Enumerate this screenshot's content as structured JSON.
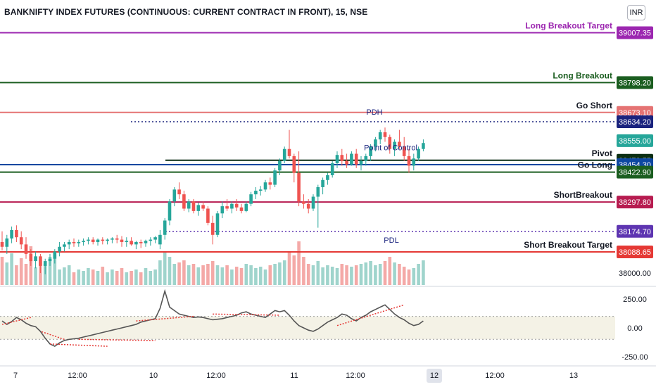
{
  "header": {
    "title": "BANKNIFTY INDEX FUTURES (CONTINUOUS: CURRENT CONTRACT IN FRONT), 15, NSE",
    "currency": "INR"
  },
  "colors": {
    "up": "#26a69a",
    "down": "#ef5350",
    "vol_up": "#9fd4cc",
    "vol_down": "#f4a9a7",
    "purple": "#9c27b0",
    "dark_green": "#1b5e20",
    "salmon": "#e57373",
    "navy": "#1a237e",
    "teal": "#26a69a",
    "blue": "#0d47a1",
    "crimson": "#b71c50",
    "indigo": "#5e35b1",
    "red": "#e53935",
    "cci": "#555555",
    "trend": "#e53935"
  },
  "chart_data": [
    {
      "type": "candlestick",
      "ylim": [
        37950,
        39050
      ],
      "x_labels": [
        "7",
        "12:00",
        "10",
        "12:00",
        "11",
        "12:00",
        "12",
        "12:00",
        "13"
      ],
      "price_axis_labels": [
        "38000.00"
      ],
      "levels": [
        {
          "label": "Long Breakout Target",
          "value": 39007.35,
          "price": "39007.35",
          "color": "#9c27b0",
          "style": "solid"
        },
        {
          "label": "Long Breakout",
          "value": 38798.2,
          "price": "38798.20",
          "color": "#1b5e20",
          "style": "solid"
        },
        {
          "label": "Go Short",
          "value": 38673.1,
          "price": "38673.10",
          "color": "#e57373",
          "style": "solid"
        },
        {
          "label": "PDH",
          "value": 38634.2,
          "price": "38634.20",
          "color": "#1a237e",
          "style": "dotted"
        },
        {
          "label": "",
          "value": 38555.0,
          "price": "38555.00",
          "color": "#26a69a",
          "style": "none"
        },
        {
          "label": "Pivot",
          "value": 38472.55,
          "price": "38472.55",
          "color": "#0b2e13",
          "style": "solid"
        },
        {
          "label": "",
          "value": 38454.3,
          "price": "38454.30",
          "color": "#0d47a1",
          "style": "solid"
        },
        {
          "label": "Go Long",
          "value": 38422.9,
          "price": "38422.90",
          "color": "#1b5e20",
          "style": "solid"
        },
        {
          "label": "ShortBreakout",
          "value": 38297.8,
          "price": "38297.80",
          "color": "#b71c50",
          "style": "solid"
        },
        {
          "label": "PDL",
          "value": 38174.7,
          "price": "38174.70",
          "color": "#5e35b1",
          "style": "dotted"
        },
        {
          "label": "Short Breakout Target",
          "value": 38088.65,
          "price": "38088.65",
          "color": "#e53935",
          "style": "solid"
        }
      ],
      "annotations": [
        "Point of Control"
      ],
      "candles": [
        {
          "o": 38130,
          "h": 38175,
          "l": 38095,
          "c": 38110
        },
        {
          "o": 38110,
          "h": 38160,
          "l": 38080,
          "c": 38145
        },
        {
          "o": 38145,
          "h": 38195,
          "l": 38125,
          "c": 38180
        },
        {
          "o": 38180,
          "h": 38200,
          "l": 38130,
          "c": 38150
        },
        {
          "o": 38150,
          "h": 38175,
          "l": 38100,
          "c": 38120
        },
        {
          "o": 38120,
          "h": 38150,
          "l": 38060,
          "c": 38080
        },
        {
          "o": 38080,
          "h": 38100,
          "l": 38030,
          "c": 38050
        },
        {
          "o": 38050,
          "h": 38090,
          "l": 38020,
          "c": 38070
        },
        {
          "o": 38070,
          "h": 38080,
          "l": 38000,
          "c": 38030
        },
        {
          "o": 38030,
          "h": 38060,
          "l": 37995,
          "c": 38050
        },
        {
          "o": 38050,
          "h": 38080,
          "l": 38030,
          "c": 38060
        },
        {
          "o": 38060,
          "h": 38100,
          "l": 38040,
          "c": 38090
        },
        {
          "o": 38090,
          "h": 38130,
          "l": 38070,
          "c": 38110
        },
        {
          "o": 38110,
          "h": 38130,
          "l": 38090,
          "c": 38120
        },
        {
          "o": 38120,
          "h": 38140,
          "l": 38100,
          "c": 38130
        },
        {
          "o": 38130,
          "h": 38145,
          "l": 38110,
          "c": 38125
        },
        {
          "o": 38125,
          "h": 38140,
          "l": 38110,
          "c": 38130
        },
        {
          "o": 38130,
          "h": 38145,
          "l": 38115,
          "c": 38135
        },
        {
          "o": 38135,
          "h": 38150,
          "l": 38120,
          "c": 38140
        },
        {
          "o": 38140,
          "h": 38150,
          "l": 38120,
          "c": 38130
        },
        {
          "o": 38130,
          "h": 38145,
          "l": 38115,
          "c": 38140
        },
        {
          "o": 38140,
          "h": 38150,
          "l": 38120,
          "c": 38135
        },
        {
          "o": 38135,
          "h": 38145,
          "l": 38120,
          "c": 38140
        },
        {
          "o": 38140,
          "h": 38150,
          "l": 38125,
          "c": 38145
        },
        {
          "o": 38145,
          "h": 38160,
          "l": 38125,
          "c": 38140
        },
        {
          "o": 38140,
          "h": 38155,
          "l": 38110,
          "c": 38130
        },
        {
          "o": 38130,
          "h": 38150,
          "l": 38110,
          "c": 38135
        },
        {
          "o": 38135,
          "h": 38150,
          "l": 38115,
          "c": 38120
        },
        {
          "o": 38120,
          "h": 38135,
          "l": 38100,
          "c": 38130
        },
        {
          "o": 38130,
          "h": 38140,
          "l": 38105,
          "c": 38125
        },
        {
          "o": 38125,
          "h": 38140,
          "l": 38110,
          "c": 38135
        },
        {
          "o": 38135,
          "h": 38150,
          "l": 38115,
          "c": 38140
        },
        {
          "o": 38140,
          "h": 38155,
          "l": 38125,
          "c": 38150
        },
        {
          "o": 38120,
          "h": 38180,
          "l": 38100,
          "c": 38160
        },
        {
          "o": 38160,
          "h": 38230,
          "l": 38140,
          "c": 38220
        },
        {
          "o": 38220,
          "h": 38310,
          "l": 38200,
          "c": 38300
        },
        {
          "o": 38300,
          "h": 38360,
          "l": 38280,
          "c": 38350
        },
        {
          "o": 38350,
          "h": 38380,
          "l": 38310,
          "c": 38330
        },
        {
          "o": 38330,
          "h": 38345,
          "l": 38260,
          "c": 38270
        },
        {
          "o": 38270,
          "h": 38310,
          "l": 38255,
          "c": 38300
        },
        {
          "o": 38300,
          "h": 38310,
          "l": 38250,
          "c": 38260
        },
        {
          "o": 38260,
          "h": 38295,
          "l": 38240,
          "c": 38285
        },
        {
          "o": 38285,
          "h": 38300,
          "l": 38260,
          "c": 38270
        },
        {
          "o": 38270,
          "h": 38280,
          "l": 38200,
          "c": 38210
        },
        {
          "o": 38210,
          "h": 38240,
          "l": 38120,
          "c": 38160
        },
        {
          "o": 38160,
          "h": 38260,
          "l": 38150,
          "c": 38250
        },
        {
          "o": 38250,
          "h": 38300,
          "l": 38230,
          "c": 38280
        },
        {
          "o": 38280,
          "h": 38310,
          "l": 38260,
          "c": 38270
        },
        {
          "o": 38270,
          "h": 38300,
          "l": 38250,
          "c": 38290
        },
        {
          "o": 38290,
          "h": 38310,
          "l": 38260,
          "c": 38275
        },
        {
          "o": 38275,
          "h": 38290,
          "l": 38250,
          "c": 38260
        },
        {
          "o": 38260,
          "h": 38300,
          "l": 38255,
          "c": 38290
        },
        {
          "o": 38290,
          "h": 38340,
          "l": 38280,
          "c": 38330
        },
        {
          "o": 38330,
          "h": 38360,
          "l": 38310,
          "c": 38345
        },
        {
          "o": 38345,
          "h": 38365,
          "l": 38325,
          "c": 38350
        },
        {
          "o": 38350,
          "h": 38390,
          "l": 38340,
          "c": 38380
        },
        {
          "o": 38380,
          "h": 38400,
          "l": 38350,
          "c": 38370
        },
        {
          "o": 38370,
          "h": 38440,
          "l": 38360,
          "c": 38430
        },
        {
          "o": 38430,
          "h": 38480,
          "l": 38410,
          "c": 38470
        },
        {
          "o": 38470,
          "h": 38530,
          "l": 38460,
          "c": 38520
        },
        {
          "o": 38520,
          "h": 38600,
          "l": 38480,
          "c": 38490
        },
        {
          "o": 38490,
          "h": 38500,
          "l": 38380,
          "c": 38420
        },
        {
          "o": 38420,
          "h": 38510,
          "l": 38280,
          "c": 38300
        },
        {
          "o": 38300,
          "h": 38330,
          "l": 38270,
          "c": 38290
        },
        {
          "o": 38290,
          "h": 38310,
          "l": 38250,
          "c": 38270
        },
        {
          "o": 38270,
          "h": 38330,
          "l": 38260,
          "c": 38320
        },
        {
          "o": 38320,
          "h": 38370,
          "l": 38190,
          "c": 38360
        },
        {
          "o": 38360,
          "h": 38400,
          "l": 38330,
          "c": 38390
        },
        {
          "o": 38390,
          "h": 38420,
          "l": 38370,
          "c": 38410
        },
        {
          "o": 38410,
          "h": 38470,
          "l": 38400,
          "c": 38460
        },
        {
          "o": 38460,
          "h": 38510,
          "l": 38440,
          "c": 38495
        },
        {
          "o": 38495,
          "h": 38520,
          "l": 38450,
          "c": 38470
        },
        {
          "o": 38470,
          "h": 38500,
          "l": 38440,
          "c": 38455
        },
        {
          "o": 38455,
          "h": 38510,
          "l": 38450,
          "c": 38500
        },
        {
          "o": 38500,
          "h": 38520,
          "l": 38440,
          "c": 38455
        },
        {
          "o": 38455,
          "h": 38490,
          "l": 38430,
          "c": 38470
        },
        {
          "o": 38470,
          "h": 38500,
          "l": 38450,
          "c": 38490
        },
        {
          "o": 38490,
          "h": 38540,
          "l": 38470,
          "c": 38530
        },
        {
          "o": 38530,
          "h": 38570,
          "l": 38510,
          "c": 38560
        },
        {
          "o": 38560,
          "h": 38600,
          "l": 38540,
          "c": 38590
        },
        {
          "o": 38590,
          "h": 38610,
          "l": 38550,
          "c": 38570
        },
        {
          "o": 38570,
          "h": 38580,
          "l": 38500,
          "c": 38520
        },
        {
          "o": 38520,
          "h": 38560,
          "l": 38490,
          "c": 38550
        },
        {
          "o": 38550,
          "h": 38600,
          "l": 38520,
          "c": 38530
        },
        {
          "o": 38530,
          "h": 38570,
          "l": 38470,
          "c": 38490
        },
        {
          "o": 38490,
          "h": 38520,
          "l": 38420,
          "c": 38450
        },
        {
          "o": 38450,
          "h": 38500,
          "l": 38430,
          "c": 38480
        },
        {
          "o": 38480,
          "h": 38530,
          "l": 38470,
          "c": 38520
        },
        {
          "o": 38520,
          "h": 38560,
          "l": 38510,
          "c": 38545
        }
      ],
      "volumes": [
        40,
        32,
        45,
        28,
        38,
        30,
        55,
        25,
        35,
        30,
        40,
        42,
        22,
        25,
        28,
        18,
        22,
        20,
        24,
        22,
        20,
        26,
        18,
        22,
        20,
        24,
        18,
        20,
        22,
        18,
        24,
        20,
        22,
        35,
        48,
        40,
        30,
        32,
        35,
        28,
        30,
        25,
        28,
        30,
        34,
        28,
        25,
        28,
        22,
        26,
        24,
        30,
        28,
        24,
        26,
        22,
        28,
        30,
        32,
        35,
        48,
        42,
        62,
        40,
        30,
        28,
        34,
        25,
        28,
        26,
        24,
        30,
        28,
        26,
        28,
        30,
        32,
        34,
        28,
        30,
        34,
        40,
        32,
        30,
        26,
        22,
        24,
        30,
        35
      ]
    },
    {
      "type": "line",
      "name": "",
      "ylim": [
        -300,
        330
      ],
      "y_labels": [
        "250.00",
        "0.00",
        "-250.00"
      ],
      "bands": [
        100,
        -100
      ],
      "values": [
        60,
        30,
        55,
        90,
        70,
        40,
        20,
        10,
        -30,
        -90,
        -140,
        -160,
        -130,
        -110,
        -100,
        -95,
        -90,
        -80,
        -70,
        -60,
        -50,
        -40,
        -30,
        -20,
        -10,
        0,
        10,
        20,
        30,
        50,
        60,
        70,
        80,
        170,
        320,
        180,
        150,
        120,
        110,
        100,
        90,
        95,
        90,
        80,
        70,
        75,
        80,
        90,
        100,
        110,
        130,
        140,
        120,
        110,
        100,
        90,
        120,
        150,
        140,
        150,
        110,
        60,
        20,
        0,
        -20,
        -30,
        -10,
        20,
        50,
        70,
        90,
        120,
        110,
        80,
        60,
        90,
        110,
        140,
        160,
        180,
        200,
        160,
        120,
        90,
        70,
        40,
        20,
        30,
        60
      ]
    }
  ]
}
